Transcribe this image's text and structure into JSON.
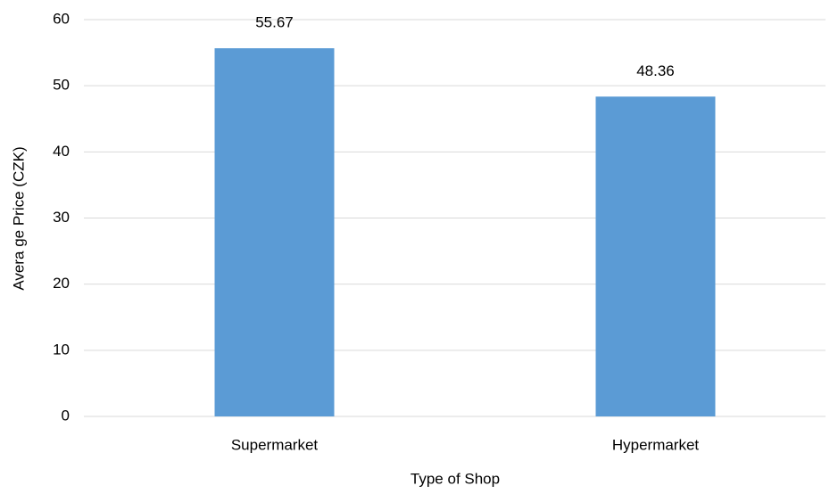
{
  "chart_data": {
    "type": "bar",
    "x_label": "Type of Shop",
    "y_label": "Avera ge Price (CZK)",
    "categories": [
      "Supermarket",
      "Hypermarket"
    ],
    "values": [
      55.67,
      48.36
    ],
    "color": "#5b9bd5",
    "ylim": [
      0,
      60
    ],
    "yticks": [
      0,
      10,
      20,
      30,
      40,
      50,
      60
    ],
    "grid": true
  }
}
